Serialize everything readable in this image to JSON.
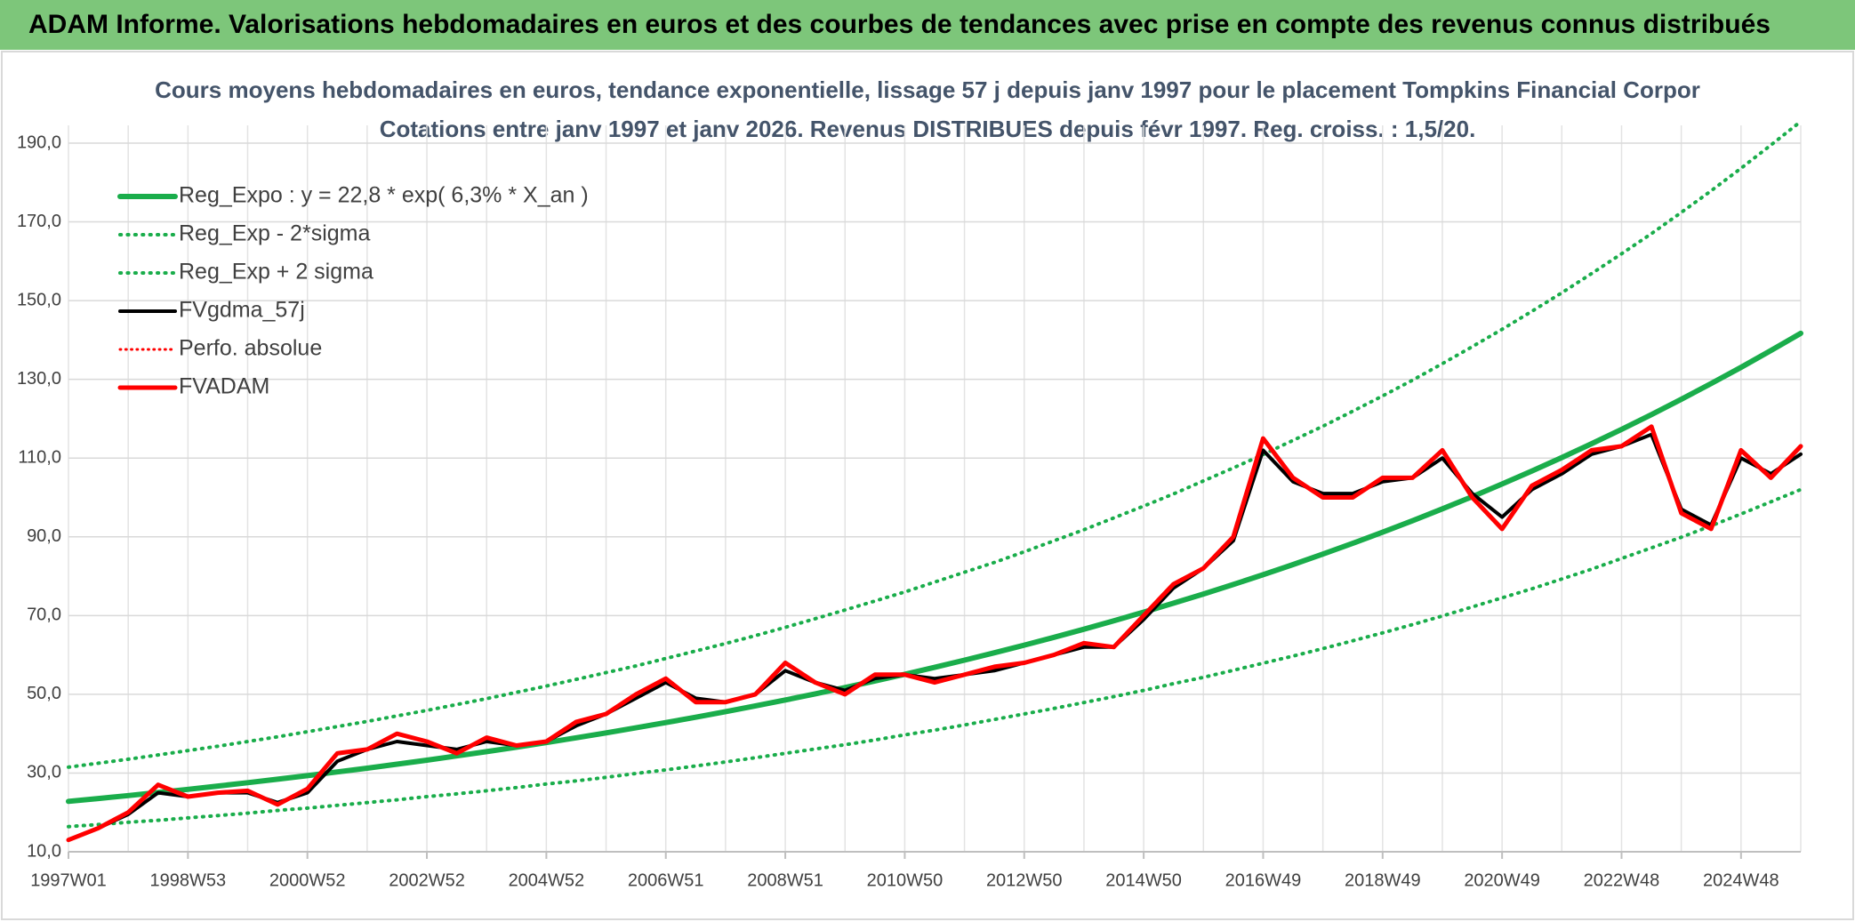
{
  "header": {
    "title": "ADAM Informe. Valorisations hebdomadaires en euros et des courbes de tendances avec prise en compte des revenus connus distribués"
  },
  "chart_data": {
    "type": "line",
    "title": "Cours moyens hebdomadaires en euros, tendance exponentielle, lissage 57 j depuis janv 1997 pour le placement Tompkins Financial Corpor",
    "subtitle": "Cotations entre janv 1997 et janv 2026. Revenus DISTRIBUES depuis févr 1997. Reg. croiss. : 1,5/20.",
    "categories": [
      "1997W01",
      null,
      null,
      null,
      "1998W53",
      null,
      null,
      null,
      "2000W52",
      null,
      null,
      null,
      "2002W52",
      null,
      null,
      null,
      "2004W52",
      null,
      null,
      null,
      "2006W51",
      null,
      null,
      null,
      "2008W51",
      null,
      null,
      null,
      "2010W50",
      null,
      null,
      null,
      "2012W50",
      null,
      null,
      null,
      "2014W50",
      null,
      null,
      null,
      "2016W49",
      null,
      null,
      null,
      "2018W49",
      null,
      null,
      null,
      "2020W49",
      null,
      null,
      null,
      "2022W48",
      null,
      null,
      null,
      "2024W48",
      null,
      null
    ],
    "series": [
      {
        "name": "Reg_Expo : y = 22,8 * exp( 6,3% *  X_an )",
        "color": "#1aad4b",
        "style": "solid",
        "width": 6,
        "values": [
          22.8,
          23.53,
          24.28,
          25.06,
          25.86,
          26.69,
          27.54,
          28.43,
          29.33,
          30.27,
          31.24,
          32.24,
          33.27,
          34.34,
          35.44,
          36.57,
          37.74,
          38.95,
          40.2,
          41.48,
          42.81,
          44.18,
          45.6,
          47.06,
          48.56,
          50.12,
          51.72,
          53.38,
          55.08,
          56.85,
          58.67,
          60.54,
          62.48,
          64.48,
          66.54,
          68.67,
          70.87,
          73.14,
          75.48,
          77.89,
          80.38,
          82.95,
          85.61,
          88.35,
          91.17,
          94.09,
          97.1,
          100.21,
          103.42,
          106.73,
          110.14,
          113.66,
          117.3,
          121.05,
          124.93,
          128.93,
          133.05,
          137.3,
          141.69
        ]
      },
      {
        "name": "Reg_Exp - 2*sigma",
        "color": "#1aad4b",
        "style": "dotted",
        "width": 4,
        "values": [
          16.4,
          16.9,
          17.5,
          18.0,
          18.6,
          19.2,
          19.8,
          20.5,
          21.1,
          21.8,
          22.5,
          23.2,
          24.0,
          24.7,
          25.5,
          26.3,
          27.2,
          28.0,
          28.9,
          29.9,
          30.8,
          31.8,
          32.8,
          33.9,
          35.0,
          36.1,
          37.2,
          38.4,
          39.7,
          40.9,
          42.2,
          43.6,
          45.0,
          46.4,
          47.9,
          49.4,
          51.0,
          52.7,
          54.3,
          56.1,
          57.9,
          59.7,
          61.6,
          63.6,
          65.6,
          67.7,
          69.9,
          72.2,
          74.5,
          76.8,
          79.3,
          81.8,
          84.5,
          87.2,
          89.9,
          92.8,
          95.8,
          98.9,
          102.0
        ]
      },
      {
        "name": "Reg_Exp + 2 sigma",
        "color": "#1aad4b",
        "style": "dotted",
        "width": 4,
        "values": [
          31.5,
          32.5,
          33.5,
          34.6,
          35.7,
          36.8,
          38.0,
          39.2,
          40.5,
          41.8,
          43.1,
          44.5,
          45.9,
          47.4,
          48.9,
          50.5,
          52.1,
          53.8,
          55.5,
          57.2,
          59.1,
          61.0,
          62.9,
          64.9,
          67.0,
          69.2,
          71.4,
          73.7,
          76.0,
          78.5,
          81.0,
          83.5,
          86.2,
          89.0,
          91.8,
          94.8,
          97.8,
          100.9,
          104.2,
          107.5,
          110.9,
          114.5,
          118.1,
          121.9,
          125.8,
          129.8,
          134.0,
          138.3,
          142.7,
          147.3,
          152.0,
          156.9,
          161.9,
          167.0,
          172.4,
          177.9,
          183.6,
          189.5,
          195.5
        ]
      },
      {
        "name": "FVgdma_57j",
        "color": "#000000",
        "style": "solid",
        "width": 4,
        "values": [
          13,
          16,
          19.5,
          25,
          24,
          25,
          25,
          22.5,
          25,
          33,
          36,
          38,
          37,
          36,
          38,
          37,
          38,
          42,
          45,
          49,
          53,
          49,
          48,
          50,
          56,
          53,
          51,
          54,
          55,
          54,
          55,
          56,
          58,
          60,
          62,
          62,
          69,
          77,
          82,
          89,
          112,
          104,
          101,
          101,
          104,
          105,
          110,
          101,
          95,
          102,
          106,
          111,
          113,
          116,
          97,
          93,
          110,
          106,
          111
        ]
      },
      {
        "name": "Perfo. absolue",
        "color": "#ff0000",
        "style": "dotted",
        "width": 3,
        "values": [
          13,
          16,
          20,
          27,
          24,
          25,
          25.5,
          22,
          26,
          35,
          36,
          40,
          38,
          35,
          39,
          37,
          38,
          43,
          45,
          50,
          54,
          48,
          48,
          50,
          58,
          53,
          50,
          55,
          55,
          53,
          55,
          57,
          58,
          60,
          63,
          62,
          70,
          78,
          82,
          90,
          115,
          105,
          100,
          100,
          105,
          105,
          112,
          100,
          92,
          103,
          107,
          112,
          113,
          118,
          96,
          92,
          112,
          105,
          113
        ]
      },
      {
        "name": "FVADAM",
        "color": "#ff0000",
        "style": "solid",
        "width": 5,
        "values": [
          13,
          16,
          20,
          27,
          24,
          25,
          25.5,
          22,
          26,
          35,
          36,
          40,
          38,
          35,
          39,
          37,
          38,
          43,
          45,
          50,
          54,
          48,
          48,
          50,
          58,
          53,
          50,
          55,
          55,
          53,
          55,
          57,
          58,
          60,
          63,
          62,
          70,
          78,
          82,
          90,
          115,
          105,
          100,
          100,
          105,
          105,
          112,
          100,
          92,
          103,
          107,
          112,
          113,
          118,
          96,
          92,
          112,
          105,
          113
        ]
      }
    ],
    "ylim": [
      10,
      190
    ],
    "yticks": [
      {
        "value": 10,
        "label": "10,0"
      },
      {
        "value": 30,
        "label": "30,0"
      },
      {
        "value": 50,
        "label": "50,0"
      },
      {
        "value": 70,
        "label": "70,0"
      },
      {
        "value": 90,
        "label": "90,0"
      },
      {
        "value": 110,
        "label": "110,0"
      },
      {
        "value": 130,
        "label": "130,0"
      },
      {
        "value": 150,
        "label": "150,0"
      },
      {
        "value": 170,
        "label": "170,0"
      },
      {
        "value": 190,
        "label": "190,0"
      }
    ],
    "grid": true,
    "legend": "upper left"
  }
}
